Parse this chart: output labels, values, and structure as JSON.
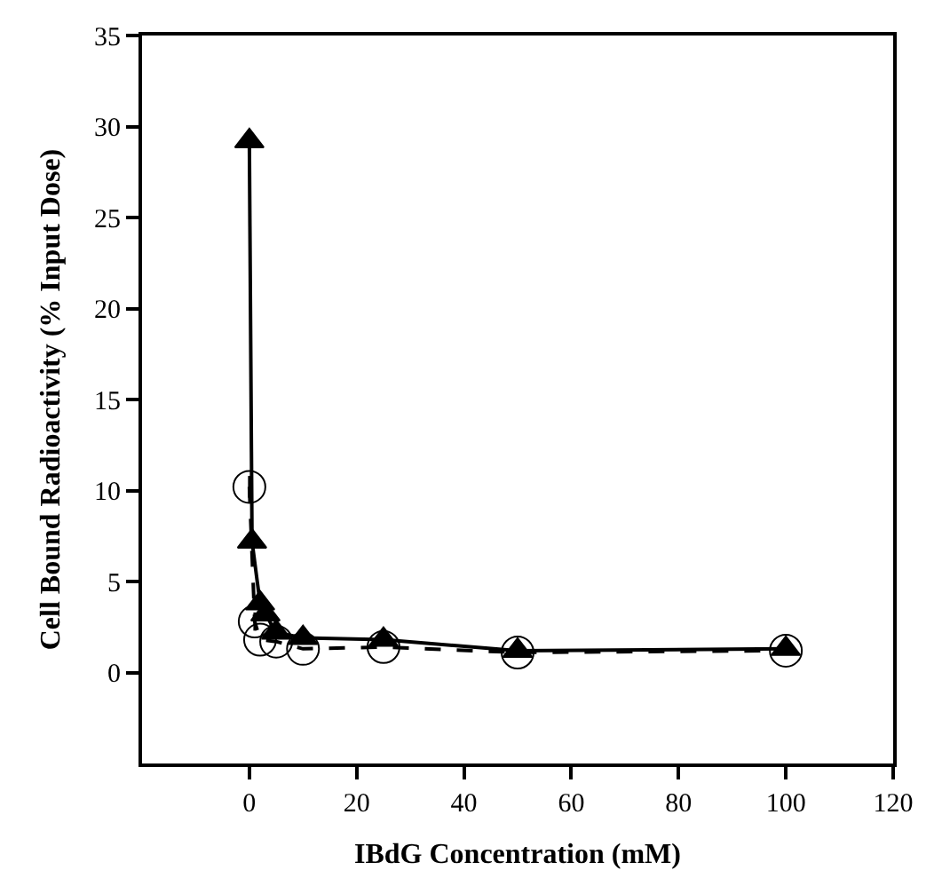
{
  "chart_data": {
    "type": "line",
    "xlabel": "IBdG Concentration (mM)",
    "ylabel": "Cell Bound Radioactivity (% Input Dose)",
    "xlim": [
      -20,
      120
    ],
    "xticks": [
      0,
      20,
      40,
      60,
      80,
      100,
      120
    ],
    "ylim": [
      -5,
      35
    ],
    "yticks": [
      0,
      5,
      10,
      15,
      20,
      25,
      30,
      35
    ],
    "series": [
      {
        "color": "#000000",
        "marker": "triangle",
        "line_style": "solid",
        "x": [
          0,
          0.5,
          2,
          3,
          5,
          10,
          25,
          50,
          100
        ],
        "values": [
          29.2,
          7.2,
          3.8,
          3.2,
          2.2,
          1.9,
          1.8,
          1.2,
          1.3
        ]
      },
      {
        "color": "#000000",
        "marker": "circle",
        "line_style": "dashed",
        "x": [
          0,
          1,
          2,
          5,
          10,
          25,
          50,
          100
        ],
        "values": [
          10.2,
          2.8,
          1.8,
          1.7,
          1.3,
          1.4,
          1.1,
          1.2
        ],
        "errors": [
          0.6,
          0.5,
          null,
          null,
          null,
          null,
          null,
          null
        ]
      }
    ]
  }
}
